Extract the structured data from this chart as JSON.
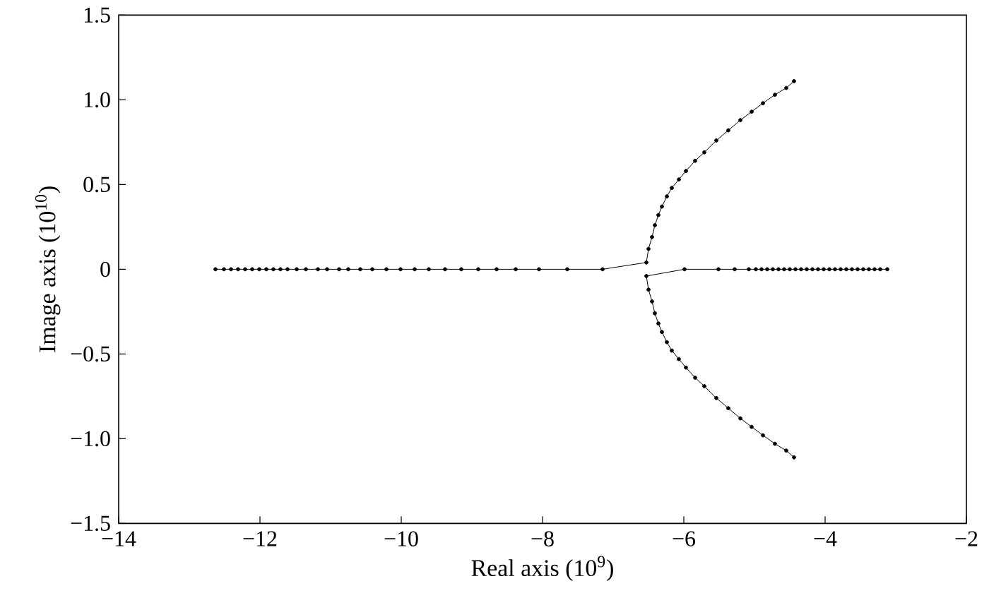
{
  "chart_data": {
    "type": "line",
    "xlabel": "Real axis (10$^{9}$)",
    "ylabel": "Image axis (10$^{10}$)",
    "xlim": [
      -14,
      -2
    ],
    "ylim": [
      -1.5,
      1.5
    ],
    "xticks": [
      {
        "value": -14,
        "label": "−14"
      },
      {
        "value": -12,
        "label": "−12"
      },
      {
        "value": -10,
        "label": "−10"
      },
      {
        "value": -8,
        "label": "−8"
      },
      {
        "value": -6,
        "label": "−6"
      },
      {
        "value": -4,
        "label": "−4"
      },
      {
        "value": -2,
        "label": "−2"
      }
    ],
    "yticks": [
      {
        "value": -1.5,
        "label": "−1.5"
      },
      {
        "value": -1,
        "label": "−1.0"
      },
      {
        "value": -0.5,
        "label": "−0.5"
      },
      0,
      {
        "value": 0.5,
        "label": "0.5"
      },
      {
        "value": 1,
        "label": "1.0"
      },
      {
        "value": 1.5,
        "label": "1.5"
      }
    ],
    "marker": "circle",
    "line_style": "solid",
    "series": [
      {
        "color": "#000000",
        "x": [
          -12.63,
          -12.51,
          -12.41,
          -12.31,
          -12.21,
          -12.11,
          -12.01,
          -11.91,
          -11.81,
          -11.71,
          -11.61,
          -11.48,
          -11.35,
          -11.18,
          -11.05,
          -10.88,
          -10.75,
          -10.58,
          -10.41,
          -10.21,
          -10.01,
          -9.81,
          -9.61,
          -9.38,
          -9.15,
          -8.91,
          -8.65,
          -8.38,
          -8.05,
          -7.65,
          -7.15,
          -6.53,
          -6.5,
          -6.45,
          -6.41,
          -6.36,
          -6.31,
          -6.24,
          -6.17,
          -6.07,
          -5.97,
          -5.84,
          -5.71,
          -5.54,
          -5.37,
          -5.2,
          -5.04,
          -4.88,
          -4.71,
          -4.55,
          -4.44
        ],
        "values": [
          0,
          0,
          0,
          0,
          0,
          0,
          0,
          0,
          0,
          0,
          0,
          0,
          0,
          0,
          0,
          0,
          0,
          0,
          0,
          0,
          0,
          0,
          0,
          0,
          0,
          0,
          0,
          0,
          0,
          0,
          0,
          0.04,
          0.12,
          0.19,
          0.26,
          0.32,
          0.37,
          0.43,
          0.48,
          0.53,
          0.58,
          0.64,
          0.69,
          0.76,
          0.82,
          0.88,
          0.93,
          0.98,
          1.03,
          1.07,
          1.11
        ]
      },
      {
        "color": "#000000",
        "x": [
          -3.12,
          -3.22,
          -3.3,
          -3.38,
          -3.46,
          -3.54,
          -3.62,
          -3.7,
          -3.78,
          -3.86,
          -3.94,
          -4.02,
          -4.1,
          -4.18,
          -4.26,
          -4.34,
          -4.42,
          -4.5,
          -4.58,
          -4.66,
          -4.74,
          -4.82,
          -4.9,
          -4.98,
          -5.08,
          -5.28,
          -5.51,
          -5.99,
          -6.53,
          -6.5,
          -6.45,
          -6.41,
          -6.36,
          -6.31,
          -6.24,
          -6.17,
          -6.07,
          -5.97,
          -5.84,
          -5.71,
          -5.54,
          -5.37,
          -5.2,
          -5.04,
          -4.88,
          -4.71,
          -4.55,
          -4.44
        ],
        "values": [
          0,
          0,
          0,
          0,
          0,
          0,
          0,
          0,
          0,
          0,
          0,
          0,
          0,
          0,
          0,
          0,
          0,
          0,
          0,
          0,
          0,
          0,
          0,
          0,
          0,
          0,
          0,
          0,
          -0.04,
          -0.12,
          -0.19,
          -0.26,
          -0.32,
          -0.37,
          -0.43,
          -0.48,
          -0.53,
          -0.58,
          -0.64,
          -0.69,
          -0.76,
          -0.82,
          -0.88,
          -0.93,
          -0.98,
          -1.03,
          -1.07,
          -1.11
        ]
      }
    ]
  }
}
